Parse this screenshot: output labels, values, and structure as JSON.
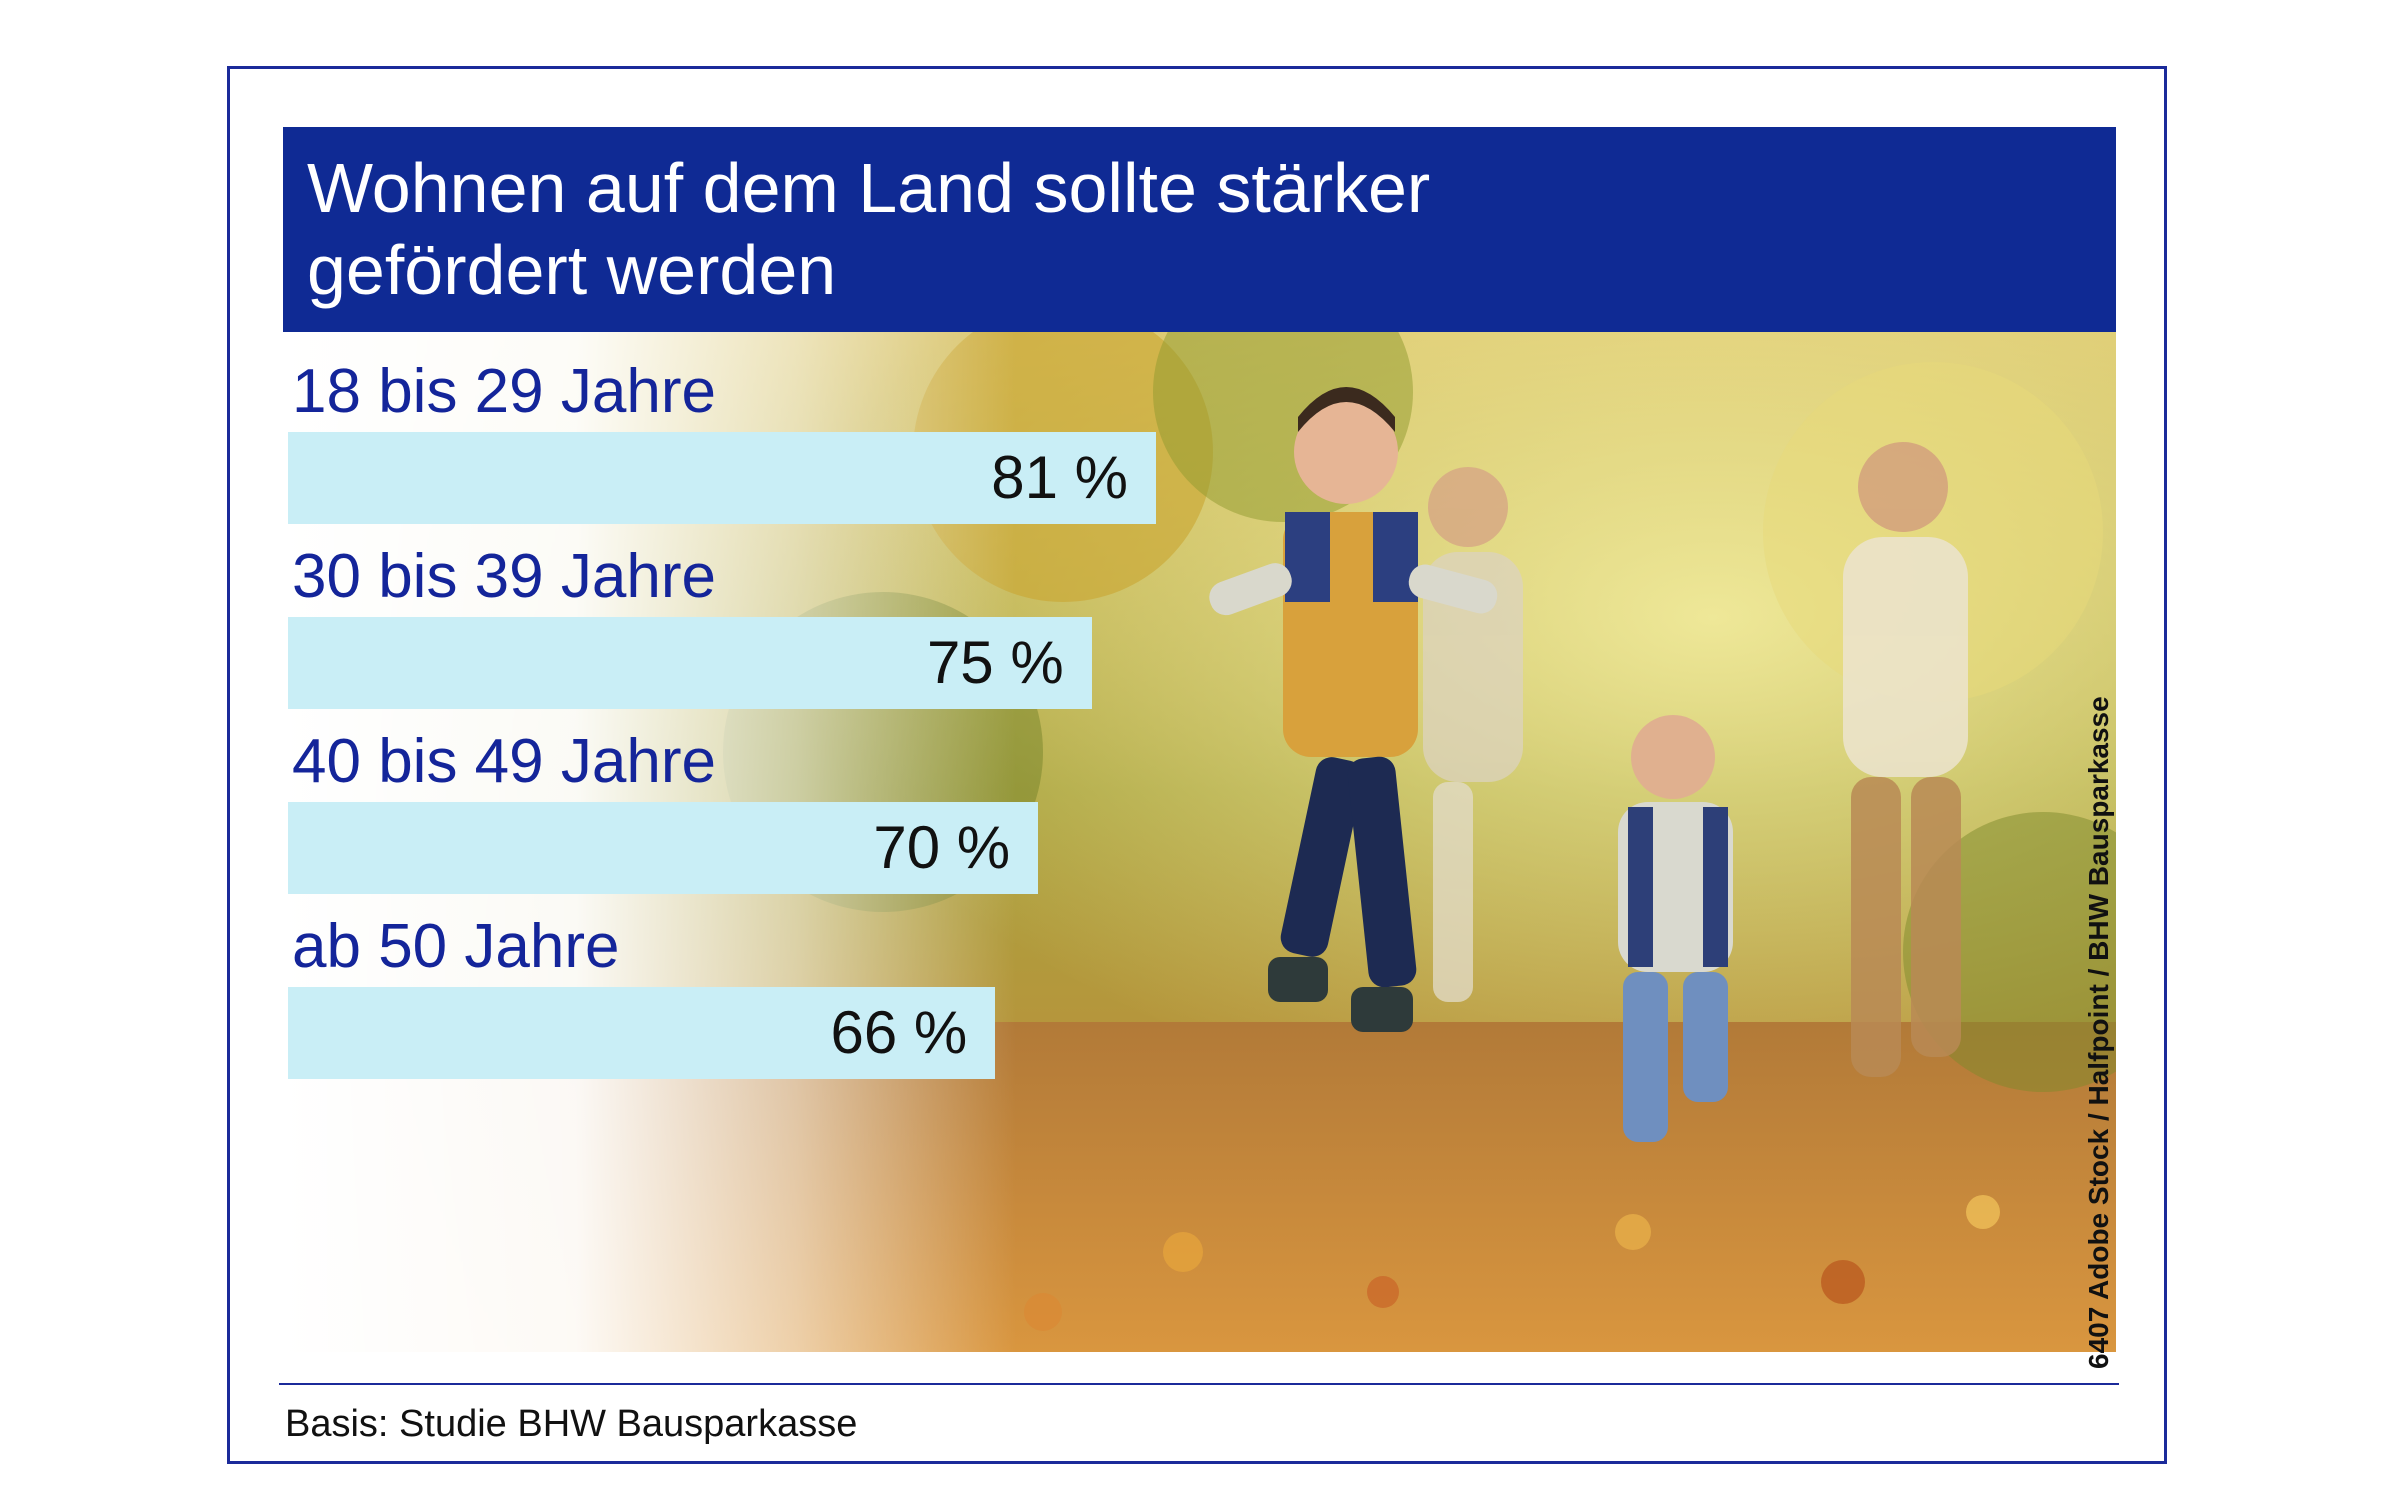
{
  "title": "Wohnen auf dem Land sollte stärker gefördert werden",
  "source": "Basis: Studie BHW Bausparkasse",
  "credit": "6407 Adobe Stock / Halfpoint / BHW Bausparkasse",
  "colors": {
    "title_background": "#0f2a94",
    "frame": "#1b2a9a",
    "bar": "#c9eef6",
    "category_text": "#14259a"
  },
  "chart_data": {
    "type": "bar",
    "orientation": "horizontal",
    "categories": [
      "18 bis 29 Jahre",
      "30 bis 39 Jahre",
      "40 bis 49 Jahre",
      "ab 50 Jahre"
    ],
    "values": [
      81,
      75,
      70,
      66
    ],
    "value_labels": [
      "81 %",
      "75 %",
      "70 %",
      "66 %"
    ],
    "unit": "%",
    "title": "Wohnen auf dem Land sollte stärker gefördert werden",
    "xlabel": "",
    "ylabel": "",
    "grid": false,
    "legend": "none"
  }
}
